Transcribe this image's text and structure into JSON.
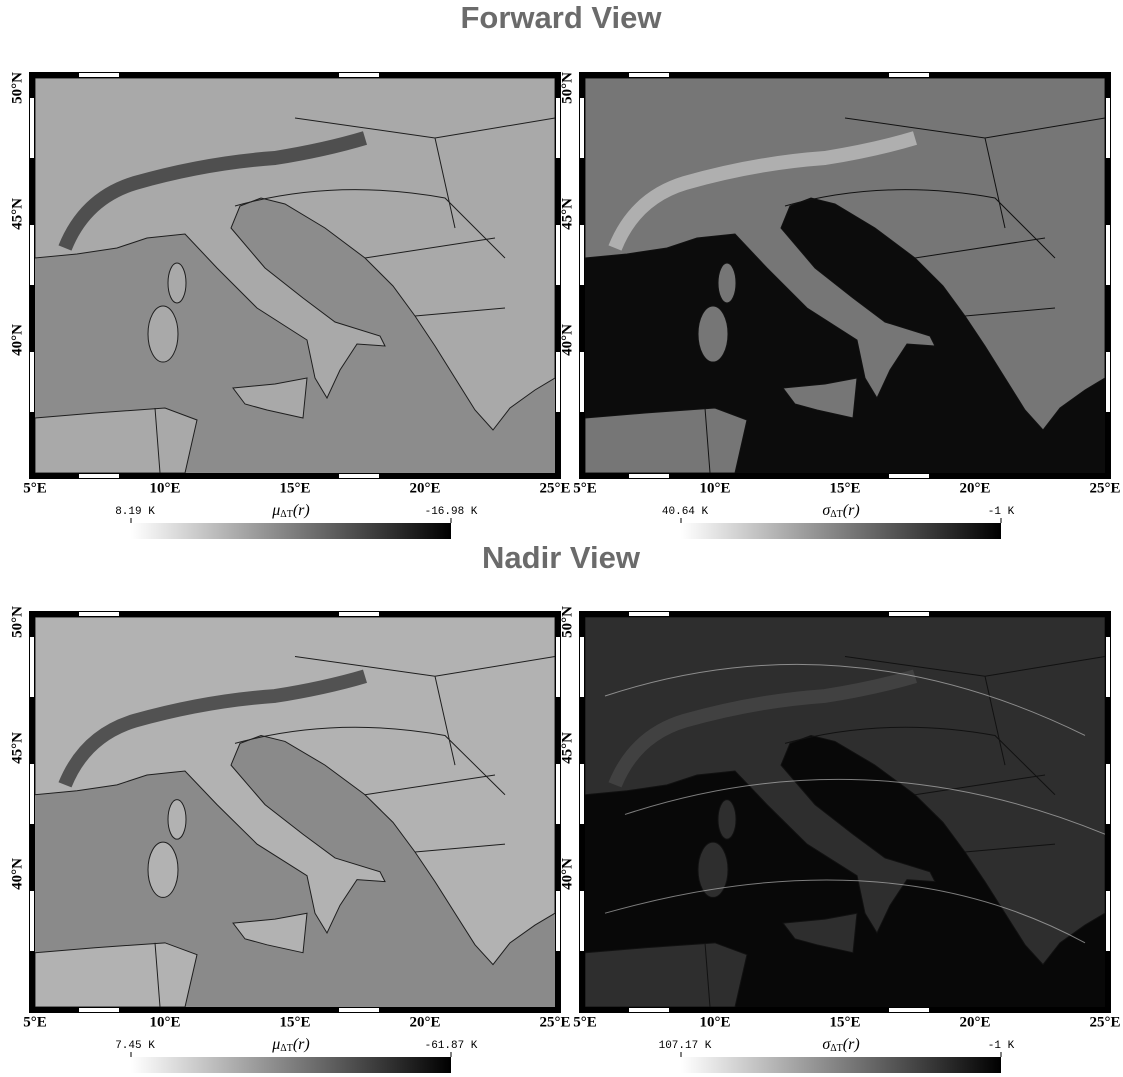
{
  "figure": {
    "sections": [
      {
        "title": "Forward View",
        "panels": [
          {
            "x_labels": [
              "5°E",
              "10°E",
              "15°E",
              "20°E",
              "25°E"
            ],
            "y_labels": [
              "40°N",
              "45°N",
              "50°N"
            ],
            "colorbar": {
              "min_label": "8.19 K",
              "max_label": "-16.98 K",
              "symbol": "μ",
              "subscript": "ΔT",
              "arg": "(r)"
            }
          },
          {
            "x_labels": [
              "5°E",
              "10°E",
              "15°E",
              "20°E",
              "25°E"
            ],
            "y_labels": [
              "40°N",
              "45°N",
              "50°N"
            ],
            "colorbar": {
              "min_label": "40.64 K",
              "max_label": "-1 K",
              "symbol": "σ",
              "subscript": "ΔT",
              "arg": "(r)"
            }
          }
        ]
      },
      {
        "title": "Nadir View",
        "panels": [
          {
            "x_labels": [
              "5°E",
              "10°E",
              "15°E",
              "20°E",
              "25°E"
            ],
            "y_labels": [
              "40°N",
              "45°N",
              "50°N"
            ],
            "colorbar": {
              "min_label": "7.45 K",
              "max_label": "-61.87 K",
              "symbol": "μ",
              "subscript": "ΔT",
              "arg": "(r)"
            }
          },
          {
            "x_labels": [
              "5°E",
              "10°E",
              "15°E",
              "20°E",
              "25°E"
            ],
            "y_labels": [
              "40°N",
              "45°N",
              "50°N"
            ],
            "colorbar": {
              "min_label": "107.17 K",
              "max_label": "-1 K",
              "symbol": "σ",
              "subscript": "ΔT",
              "arg": "(r)"
            }
          }
        ]
      }
    ]
  }
}
